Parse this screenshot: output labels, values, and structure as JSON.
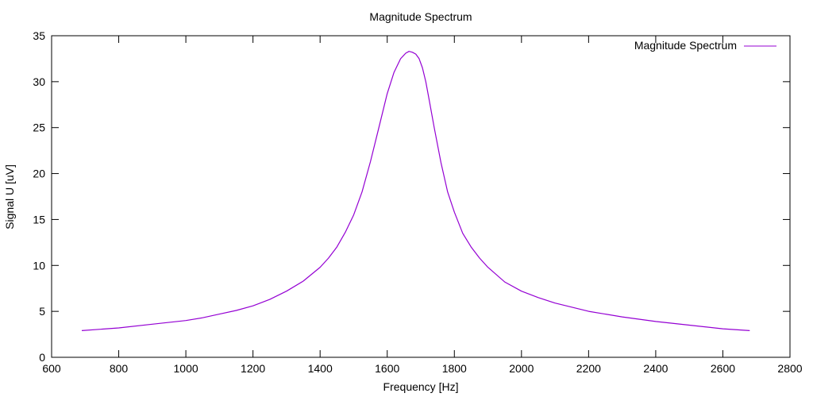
{
  "chart_data": {
    "type": "line",
    "title": "Magnitude Spectrum",
    "xlabel": "Frequency [Hz]",
    "ylabel": "Signal U [uV]",
    "xlim": [
      600,
      2800
    ],
    "ylim": [
      0,
      35
    ],
    "x_ticks": [
      "600",
      "800",
      "1000",
      "1200",
      "1400",
      "1600",
      "1800",
      "2000",
      "2200",
      "2400",
      "2600",
      "2800"
    ],
    "y_ticks": [
      "0",
      "5",
      "10",
      "15",
      "20",
      "25",
      "30",
      "35"
    ],
    "grid": false,
    "legend_position": "top-right",
    "series": [
      {
        "name": "Magnitude Spectrum",
        "color": "#9400d3",
        "x": [
          690,
          800,
          900,
          1000,
          1050,
          1100,
          1150,
          1200,
          1250,
          1300,
          1350,
          1400,
          1425,
          1450,
          1475,
          1500,
          1525,
          1550,
          1575,
          1600,
          1620,
          1640,
          1655,
          1665,
          1675,
          1685,
          1695,
          1705,
          1715,
          1725,
          1740,
          1760,
          1780,
          1800,
          1825,
          1850,
          1875,
          1900,
          1950,
          2000,
          2050,
          2100,
          2200,
          2300,
          2400,
          2500,
          2600,
          2680
        ],
        "values": [
          2.9,
          3.2,
          3.6,
          4.0,
          4.3,
          4.7,
          5.1,
          5.6,
          6.3,
          7.2,
          8.3,
          9.8,
          10.8,
          12.0,
          13.6,
          15.5,
          18.0,
          21.3,
          25.0,
          28.7,
          31.0,
          32.5,
          33.1,
          33.3,
          33.2,
          33.0,
          32.5,
          31.5,
          30.0,
          28.0,
          25.0,
          21.2,
          18.0,
          15.8,
          13.5,
          12.0,
          10.8,
          9.8,
          8.2,
          7.2,
          6.5,
          5.9,
          5.0,
          4.4,
          3.9,
          3.5,
          3.1,
          2.9
        ]
      }
    ]
  }
}
